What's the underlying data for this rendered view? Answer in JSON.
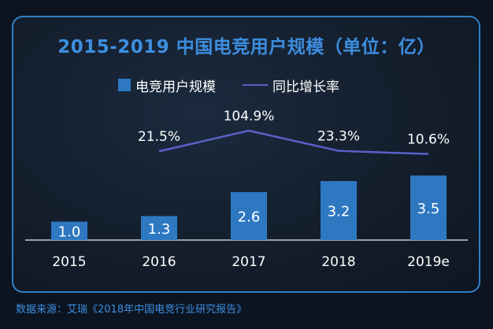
{
  "chart_data": {
    "type": "bar",
    "title": "2015-2019 中国电竞用户规模（单位：亿）",
    "categories": [
      "2015",
      "2016",
      "2017",
      "2018",
      "2019e"
    ],
    "series": [
      {
        "name": "电竞用户规模",
        "type": "bar",
        "values": [
          1.0,
          1.3,
          2.6,
          3.2,
          3.5
        ],
        "labels": [
          "1.0",
          "1.3",
          "2.6",
          "3.2",
          "3.5"
        ],
        "color": "#2e78c2"
      },
      {
        "name": "同比增长率",
        "type": "line",
        "values": [
          null,
          21.5,
          104.9,
          23.3,
          10.6
        ],
        "labels": [
          "",
          "21.5%",
          "104.9%",
          "23.3%",
          "10.6%"
        ],
        "color": "#5a60c8"
      }
    ],
    "grid": false,
    "legend": "top"
  },
  "source": "数据来源：艾瑞《2018年中国电竞行业研究报告》"
}
